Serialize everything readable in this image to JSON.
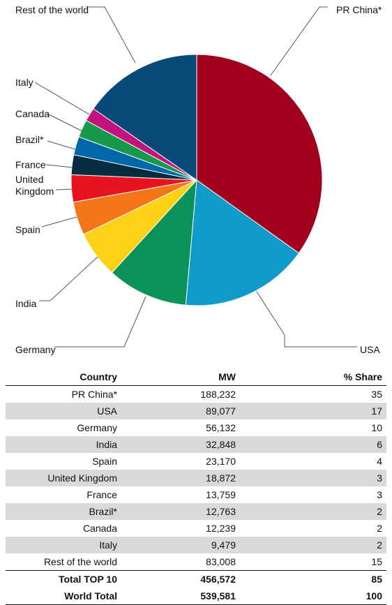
{
  "chart_data": {
    "type": "pie",
    "slices": [
      {
        "label": "PR China*",
        "value": 188232,
        "color": "#a0001e",
        "anchor": "right"
      },
      {
        "label": "USA",
        "value": 89077,
        "color": "#0f9bc9",
        "anchor": "right"
      },
      {
        "label": "Germany",
        "value": 56132,
        "color": "#0a9259",
        "anchor": "left"
      },
      {
        "label": "India",
        "value": 32848,
        "color": "#fcd116",
        "anchor": "left"
      },
      {
        "label": "Spain",
        "value": 23170,
        "color": "#f5761a",
        "anchor": "left"
      },
      {
        "label": "United Kingdom",
        "value": 18872,
        "color": "#e8131e",
        "anchor": "left"
      },
      {
        "label": "France",
        "value": 13759,
        "color": "#062c3f",
        "anchor": "left"
      },
      {
        "label": "Brazil*",
        "value": 12763,
        "color": "#0067aa",
        "anchor": "left"
      },
      {
        "label": "Canada",
        "value": 12239,
        "color": "#169a49",
        "anchor": "left"
      },
      {
        "label": "Italy",
        "value": 9479,
        "color": "#c2127c",
        "anchor": "left"
      },
      {
        "label": "Rest of the world",
        "value": 83008,
        "color": "#08497a",
        "anchor": "left"
      }
    ]
  },
  "table": {
    "headers": {
      "country": "Country",
      "mw": "MW",
      "share": "% Share"
    },
    "rows": [
      {
        "country": "PR China*",
        "mw": "188,232",
        "share": "35"
      },
      {
        "country": "USA",
        "mw": "89,077",
        "share": "17"
      },
      {
        "country": "Germany",
        "mw": "56,132",
        "share": "10"
      },
      {
        "country": "India",
        "mw": "32,848",
        "share": "6"
      },
      {
        "country": "Spain",
        "mw": "23,170",
        "share": "4"
      },
      {
        "country": "United Kingdom",
        "mw": "18,872",
        "share": "3"
      },
      {
        "country": "France",
        "mw": "13,759",
        "share": "3"
      },
      {
        "country": "Brazil*",
        "mw": "12,763",
        "share": "2"
      },
      {
        "country": "Canada",
        "mw": "12,239",
        "share": "2"
      },
      {
        "country": "Italy",
        "mw": "9,479",
        "share": "2"
      },
      {
        "country": "Rest of the world",
        "mw": "83,008",
        "share": "15"
      }
    ],
    "totals": [
      {
        "country": "Total TOP 10",
        "mw": "456,572",
        "share": "85"
      },
      {
        "country": "World Total",
        "mw": "539,581",
        "share": "100"
      }
    ]
  }
}
